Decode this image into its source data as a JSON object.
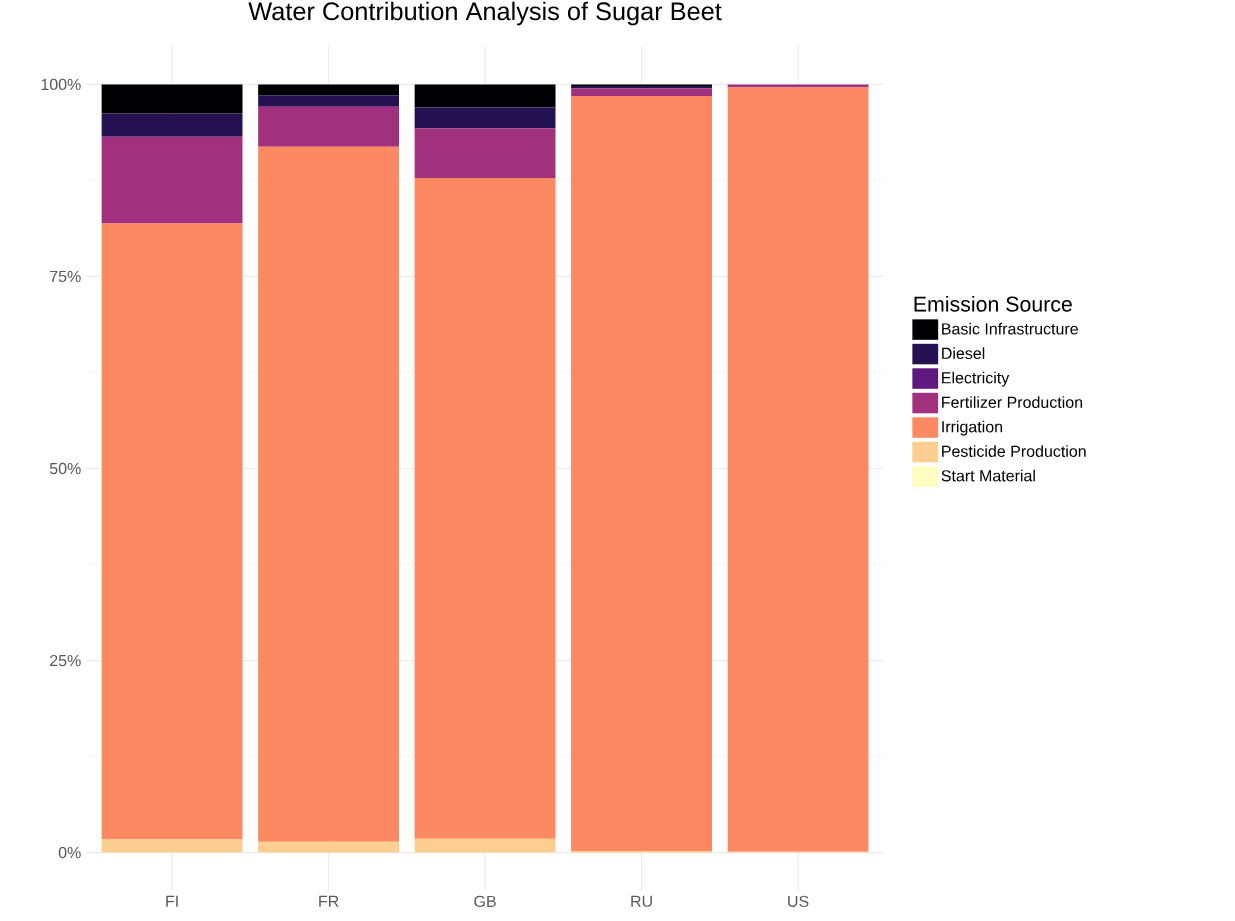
{
  "chart_data": {
    "type": "bar",
    "stacked": true,
    "title": "Water Contribution Analysis of Sugar Beet",
    "legend_title": "Emission Source",
    "categories": [
      "FI",
      "FR",
      "GB",
      "RU",
      "US"
    ],
    "series": [
      {
        "name": "Start Material",
        "color": "#fcfdbf",
        "values": [
          0,
          0,
          0,
          0,
          0
        ]
      },
      {
        "name": "Pesticide Production",
        "color": "#fece91",
        "values": [
          1.7,
          1.4,
          1.8,
          0.2,
          0.1
        ]
      },
      {
        "name": "Irrigation",
        "color": "#fc8961",
        "values": [
          80.2,
          90.5,
          86.0,
          98.3,
          99.5
        ]
      },
      {
        "name": "Fertilizer Production",
        "color": "#a1307e",
        "values": [
          11.3,
          5.2,
          6.5,
          1.0,
          0.4
        ]
      },
      {
        "name": "Electricity",
        "color": "#5f187f",
        "values": [
          0,
          0,
          0,
          0,
          0
        ]
      },
      {
        "name": "Diesel",
        "color": "#231151",
        "values": [
          3.0,
          1.5,
          2.7,
          0.3,
          0
        ]
      },
      {
        "name": "Basic Infrastructure",
        "color": "#000004",
        "values": [
          3.8,
          1.4,
          3.0,
          0.2,
          0
        ]
      }
    ],
    "ylim": [
      -5,
      105
    ],
    "yticks": [
      {
        "value": 0,
        "label": "0%"
      },
      {
        "value": 25,
        "label": "25%"
      },
      {
        "value": 50,
        "label": "50%"
      },
      {
        "value": 75,
        "label": "75%"
      },
      {
        "value": 100,
        "label": "100%"
      }
    ],
    "grid": true,
    "legend": "right"
  }
}
